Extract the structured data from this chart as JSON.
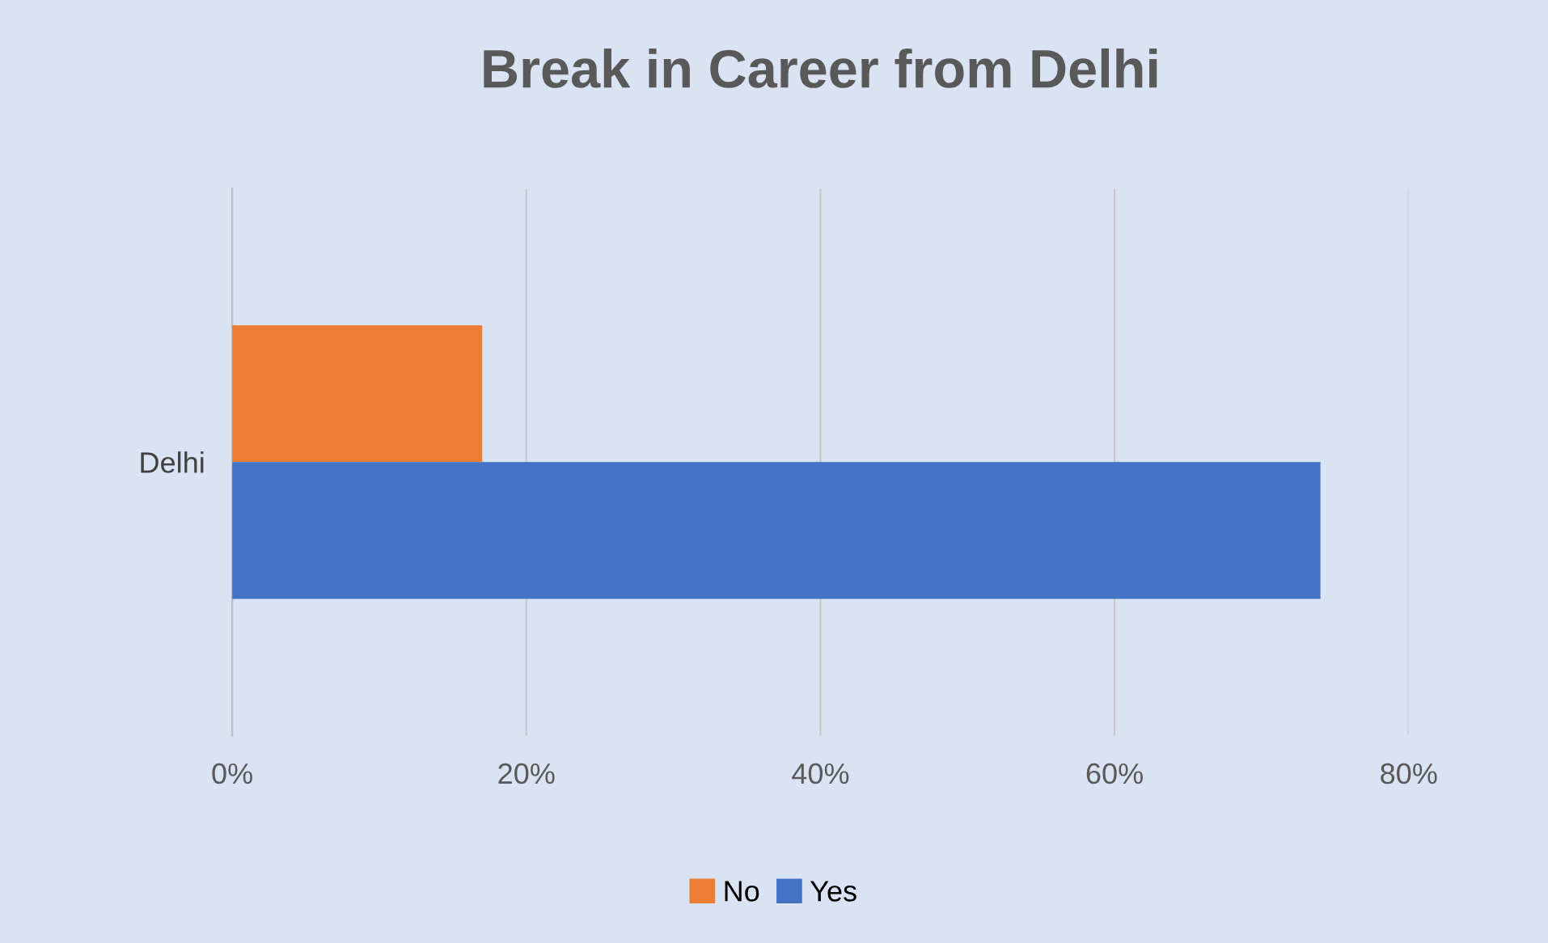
{
  "chart_data": {
    "type": "bar",
    "orientation": "horizontal",
    "title": "Break in Career from Delhi",
    "categories": [
      "Delhi"
    ],
    "series": [
      {
        "name": "No",
        "color": "#ed7d31",
        "values": [
          17
        ]
      },
      {
        "name": "Yes",
        "color": "#4472c4",
        "values": [
          74
        ]
      }
    ],
    "xlim": [
      0,
      80
    ],
    "xticks": [
      {
        "value": 0,
        "label": "0%"
      },
      {
        "value": 20,
        "label": "20%"
      },
      {
        "value": 40,
        "label": "40%"
      },
      {
        "value": 60,
        "label": "60%"
      },
      {
        "value": 80,
        "label": "80%"
      }
    ],
    "grid": "x",
    "legend": "bottom"
  }
}
